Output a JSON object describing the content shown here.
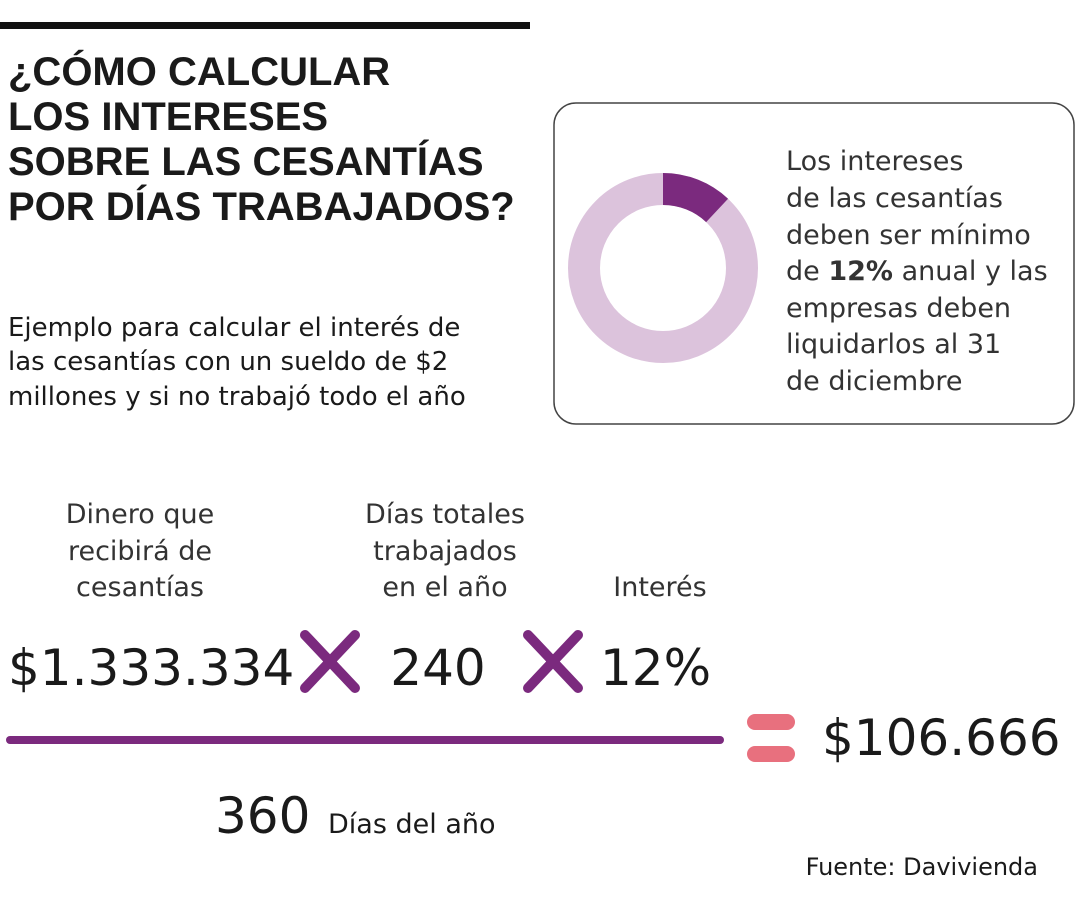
{
  "title": {
    "lines": [
      "¿CÓMO CALCULAR",
      "LOS INTERESES",
      "SOBRE LAS CESANTÍAS",
      "POR DÍAS TRABAJADOS?"
    ]
  },
  "subtitle": {
    "lines": [
      "Ejemplo para calcular el interés de",
      "las cesantías con un sueldo de $2",
      "millones y si no trabajó todo el año"
    ]
  },
  "donut": {
    "value": 12,
    "color": "#7b2a7e",
    "track_color": "#dcc3dc"
  },
  "note": {
    "lines": [
      "Los intereses",
      "de las cesantías",
      "deben ser mínimo"
    ],
    "highlight_line": {
      "before": "de ",
      "bold": "12%",
      "after": " anual y las"
    },
    "lines_after": [
      "empresas deben",
      "liquidarlos al 31",
      "de diciembre"
    ]
  },
  "formula": {
    "labels": [
      [
        "Dinero que",
        "recibirá de",
        "cesantías"
      ],
      [
        "Días totales",
        "trabajados",
        "en el año"
      ],
      [
        "Interés"
      ]
    ],
    "terms": [
      "$1.333.334",
      "240",
      "12%"
    ],
    "denominator": "360",
    "denominator_label": "Días del año",
    "result": "$106.666"
  },
  "source": "Fuente: Davivienda"
}
